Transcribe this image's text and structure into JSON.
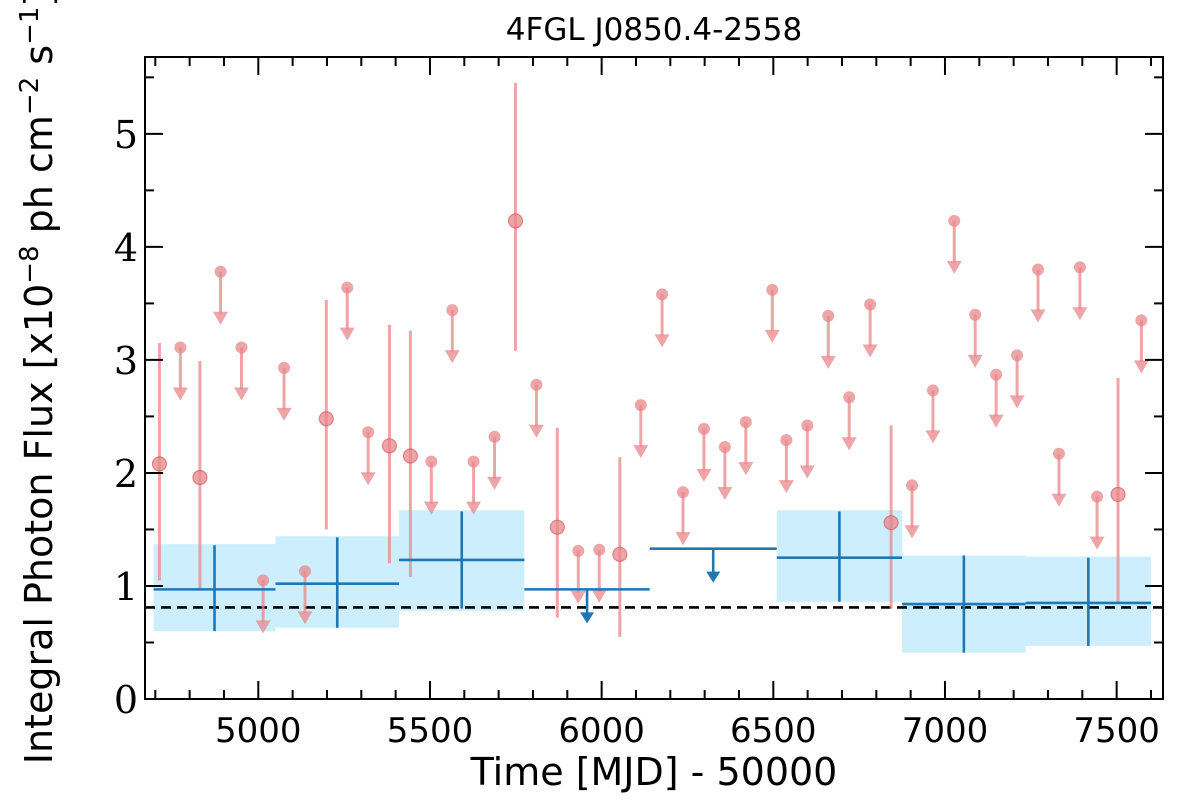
{
  "chart_data": {
    "type": "scatter",
    "title": "4FGL J0850.4-2558",
    "xlabel": "Time [MJD] - 50000",
    "ylabel_main": "Integral Photon Flux [x10",
    "ylabel_exp1": "−8",
    "ylabel_mid": " ph cm",
    "ylabel_exp2": "−2",
    "ylabel_mid2": " s",
    "ylabel_exp3": "−1",
    "ylabel_end": "]",
    "xlim": [
      4670,
      7635
    ],
    "ylim": [
      0,
      5.68
    ],
    "xticks": [
      5000,
      5500,
      6000,
      6500,
      7000,
      7500
    ],
    "yticks": [
      0,
      1,
      2,
      3,
      4,
      5
    ],
    "reference_level": 0.81,
    "colors": {
      "short_bins": "#e8878a",
      "long_bins": "#1f77b4",
      "long_bins_band": "#cdeefc",
      "reference_line": "#000000"
    },
    "detections": [
      {
        "x": 4712,
        "y": 2.08,
        "lo": 1.05,
        "hi": 3.15
      },
      {
        "x": 4830,
        "y": 1.96,
        "lo": 0.97,
        "hi": 2.99
      },
      {
        "x": 5198,
        "y": 2.48,
        "lo": 1.5,
        "hi": 3.53
      },
      {
        "x": 5382,
        "y": 2.24,
        "lo": 1.2,
        "hi": 3.31
      },
      {
        "x": 5443,
        "y": 2.15,
        "lo": 1.08,
        "hi": 3.26
      },
      {
        "x": 5749,
        "y": 4.23,
        "lo": 3.08,
        "hi": 5.45
      },
      {
        "x": 5871,
        "y": 1.52,
        "lo": 0.72,
        "hi": 2.4
      },
      {
        "x": 6053,
        "y": 1.28,
        "lo": 0.55,
        "hi": 2.14
      },
      {
        "x": 6843,
        "y": 1.56,
        "lo": 0.8,
        "hi": 2.42
      },
      {
        "x": 7504,
        "y": 1.81,
        "lo": 0.85,
        "hi": 2.84
      }
    ],
    "upper_limits": [
      {
        "x": 4773,
        "y": 3.11
      },
      {
        "x": 4890,
        "y": 3.78
      },
      {
        "x": 4951,
        "y": 3.11
      },
      {
        "x": 5014,
        "y": 1.05
      },
      {
        "x": 5075,
        "y": 2.93
      },
      {
        "x": 5136,
        "y": 1.13
      },
      {
        "x": 5259,
        "y": 3.64
      },
      {
        "x": 5320,
        "y": 2.36
      },
      {
        "x": 5504,
        "y": 2.1
      },
      {
        "x": 5565,
        "y": 3.44
      },
      {
        "x": 5627,
        "y": 2.1
      },
      {
        "x": 5688,
        "y": 2.32
      },
      {
        "x": 5810,
        "y": 2.78
      },
      {
        "x": 5932,
        "y": 1.31
      },
      {
        "x": 5993,
        "y": 1.32
      },
      {
        "x": 6114,
        "y": 2.6
      },
      {
        "x": 6176,
        "y": 3.58
      },
      {
        "x": 6237,
        "y": 1.83
      },
      {
        "x": 6298,
        "y": 2.39
      },
      {
        "x": 6359,
        "y": 2.23
      },
      {
        "x": 6420,
        "y": 2.45
      },
      {
        "x": 6497,
        "y": 3.62
      },
      {
        "x": 6538,
        "y": 2.29
      },
      {
        "x": 6599,
        "y": 2.42
      },
      {
        "x": 6660,
        "y": 3.39
      },
      {
        "x": 6721,
        "y": 2.67
      },
      {
        "x": 6782,
        "y": 3.49
      },
      {
        "x": 6904,
        "y": 1.89
      },
      {
        "x": 6965,
        "y": 2.73
      },
      {
        "x": 7027,
        "y": 4.23
      },
      {
        "x": 7088,
        "y": 3.4
      },
      {
        "x": 7149,
        "y": 2.87
      },
      {
        "x": 7210,
        "y": 3.04
      },
      {
        "x": 7271,
        "y": 3.8
      },
      {
        "x": 7332,
        "y": 2.17
      },
      {
        "x": 7393,
        "y": 3.82
      },
      {
        "x": 7443,
        "y": 1.79
      },
      {
        "x": 7572,
        "y": 3.35
      }
    ],
    "long_bins": [
      {
        "x0": 4695,
        "x1": 5050,
        "y": 0.97,
        "lo": 0.6,
        "hi": 1.36,
        "band_lo": 0.6,
        "band_hi": 1.37
      },
      {
        "x0": 5050,
        "x1": 5410,
        "y": 1.02,
        "lo": 0.63,
        "hi": 1.43,
        "band_lo": 0.63,
        "band_hi": 1.44
      },
      {
        "x0": 5410,
        "x1": 5775,
        "y": 1.23,
        "lo": 0.8,
        "hi": 1.66,
        "band_lo": 0.78,
        "band_hi": 1.67
      },
      {
        "x0": 6510,
        "x1": 6875,
        "y": 1.25,
        "lo": 0.86,
        "hi": 1.66,
        "band_lo": 0.86,
        "band_hi": 1.67
      },
      {
        "x0": 6875,
        "x1": 7235,
        "y": 0.84,
        "lo": 0.41,
        "hi": 1.27,
        "band_lo": 0.41,
        "band_hi": 1.27
      },
      {
        "x0": 7235,
        "x1": 7600,
        "y": 0.85,
        "lo": 0.47,
        "hi": 1.25,
        "band_lo": 0.47,
        "band_hi": 1.26
      }
    ],
    "long_upper_limits": [
      {
        "x0": 5775,
        "x1": 6140,
        "y": 0.97
      },
      {
        "x0": 6140,
        "x1": 6510,
        "y": 1.33
      }
    ]
  }
}
